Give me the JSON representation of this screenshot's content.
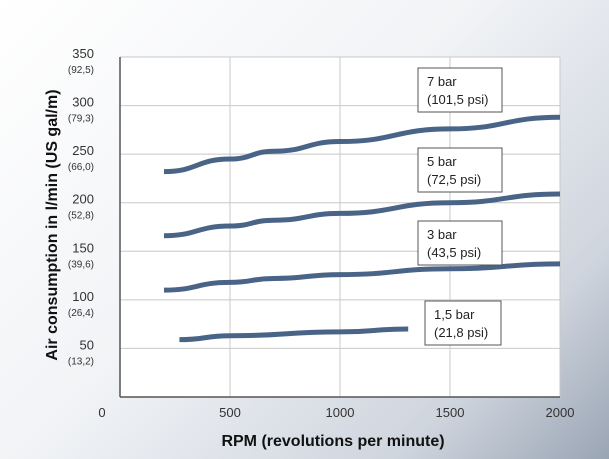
{
  "colors": {
    "series": "#4a6487",
    "plot_bg": "#ffffff",
    "grid": "#c8c8c8",
    "axis": "#555555"
  },
  "chart_data": {
    "type": "line",
    "title": "",
    "xlabel": "RPM (revolutions per minute)",
    "ylabel": "Air consumption in l/min (US gal/m)",
    "xlim": [
      0,
      2000
    ],
    "ylim": [
      0,
      350
    ],
    "grid": true,
    "x_ticks": [
      {
        "value": 0,
        "label": "0"
      },
      {
        "value": 500,
        "label": "500"
      },
      {
        "value": 1000,
        "label": "1000"
      },
      {
        "value": 1500,
        "label": "1500"
      },
      {
        "value": 2000,
        "label": "2000"
      }
    ],
    "y_ticks": [
      {
        "value": 50,
        "label": "50",
        "sublabel": "(13,2)"
      },
      {
        "value": 100,
        "label": "100",
        "sublabel": "(26,4)"
      },
      {
        "value": 150,
        "label": "150",
        "sublabel": "(39,6)"
      },
      {
        "value": 200,
        "label": "200",
        "sublabel": "(52,8)"
      },
      {
        "value": 250,
        "label": "250",
        "sublabel": "(66,0)"
      },
      {
        "value": 300,
        "label": "300",
        "sublabel": "(79,3)"
      },
      {
        "value": 350,
        "label": "350",
        "sublabel": "(92,5)"
      }
    ],
    "series": [
      {
        "name_line1": "7 bar",
        "name_line2": "(101,5 psi)",
        "x": [
          200,
          500,
          700,
          1000,
          1500,
          2000
        ],
        "y": [
          232,
          245,
          253,
          263,
          276,
          288
        ]
      },
      {
        "name_line1": "5 bar",
        "name_line2": "(72,5 psi)",
        "x": [
          200,
          500,
          700,
          1000,
          1500,
          2000
        ],
        "y": [
          166,
          176,
          182,
          189,
          200,
          209
        ]
      },
      {
        "name_line1": "3 bar",
        "name_line2": "(43,5 psi)",
        "x": [
          200,
          500,
          700,
          1000,
          1500,
          2000
        ],
        "y": [
          110,
          118,
          122,
          126,
          132,
          137
        ]
      },
      {
        "name_line1": "1,5 bar",
        "name_line2": "(21,8 psi)",
        "x": [
          270,
          500,
          1000,
          1310
        ],
        "y": [
          59,
          63,
          67,
          70
        ]
      }
    ]
  }
}
